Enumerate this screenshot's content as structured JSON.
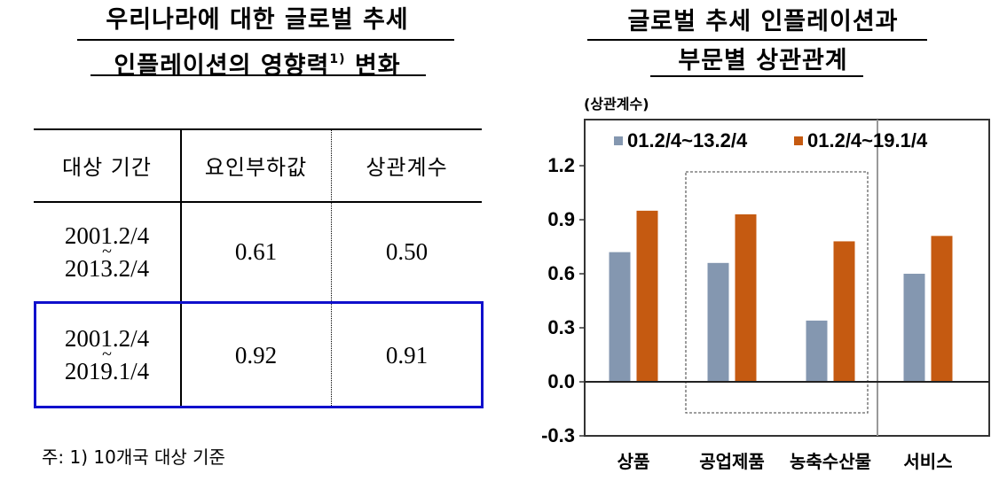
{
  "left_panel": {
    "title_line1": "우리나라에 대한 글로벌 추세",
    "title_line2_main": "인플레이션의 영향력",
    "title_line2_sup": "1)",
    "title_line2_end": " 변화",
    "table": {
      "headers": [
        "대상 기간",
        "요인부하값",
        "상관계수"
      ],
      "rows": [
        {
          "period_start": "2001.2/4",
          "period_sep": "~",
          "period_end": "2013.2/4",
          "loading": "0.61",
          "correlation": "0.50",
          "highlighted": false
        },
        {
          "period_start": "2001.2/4",
          "period_sep": "~",
          "period_end": "2019.1/4",
          "loading": "0.92",
          "correlation": "0.91",
          "highlighted": true
        }
      ],
      "highlight_color": "#1010CC"
    },
    "footnote": "주: 1) 10개국 대상 기준"
  },
  "right_panel": {
    "title_line1": "글로벌 추세 인플레이션과",
    "title_line2": "부문별 상관관계"
  },
  "chart_data": {
    "type": "bar",
    "title": "글로벌 추세 인플레이션과 부문별 상관관계",
    "ylabel": "(상관계수)",
    "xlabel": "",
    "categories": [
      "상품",
      "공업제품",
      "농축수산물",
      "서비스"
    ],
    "series": [
      {
        "name": "01.2/4~13.2/4",
        "color": "#8497B0",
        "values": [
          0.72,
          0.66,
          0.34,
          0.6
        ]
      },
      {
        "name": "01.2/4~19.1/4",
        "color": "#C55A11",
        "values": [
          0.95,
          0.93,
          0.78,
          0.81
        ]
      }
    ],
    "ylim": [
      -0.3,
      1.2
    ],
    "yticks": [
      "1.2",
      "0.9",
      "0.6",
      "0.3",
      "0.0",
      "-0.3"
    ],
    "grid": false,
    "legend_position": "top-inside",
    "annotations": [
      {
        "type": "dotted-box",
        "covers": [
          "공업제품",
          "농축수산물"
        ]
      },
      {
        "type": "vertical-separator",
        "before": "서비스"
      }
    ]
  }
}
